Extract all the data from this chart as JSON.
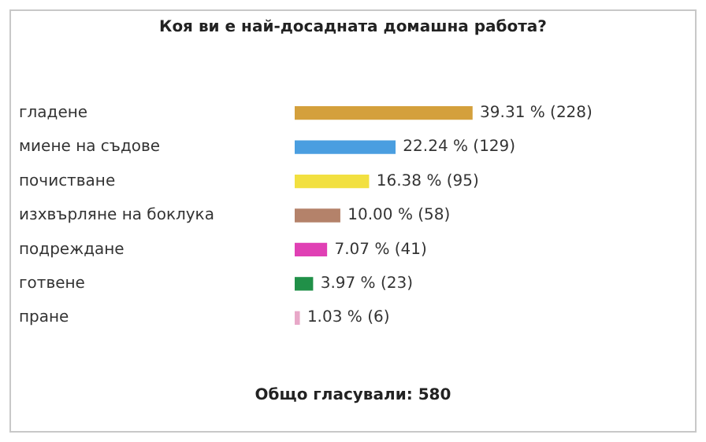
{
  "chart_data": {
    "type": "bar",
    "orientation": "horizontal",
    "title": "Коя ви е най-досадната домашна работа?",
    "categories": [
      "гладене",
      "миене на съдове",
      "почистване",
      "изхвърляне на боклука",
      "подреждане",
      "готвене",
      "пране"
    ],
    "values": [
      39.31,
      22.24,
      16.38,
      10.0,
      7.07,
      3.97,
      1.03
    ],
    "colors": [
      "#d4a03c",
      "#4a9ee0",
      "#f2e040",
      "#b4826a",
      "#e040b4",
      "#209048",
      "#e8a8c8"
    ],
    "value_labels": [
      "39.31 % (228)",
      "22.24 % (129)",
      "16.38 % (95)",
      "10.00 % (58)",
      "7.07 % (41)",
      "3.97 % (23)",
      "1.03 % (6)"
    ],
    "annotations": [
      "Общо гласували: 580"
    ],
    "legend": false
  }
}
